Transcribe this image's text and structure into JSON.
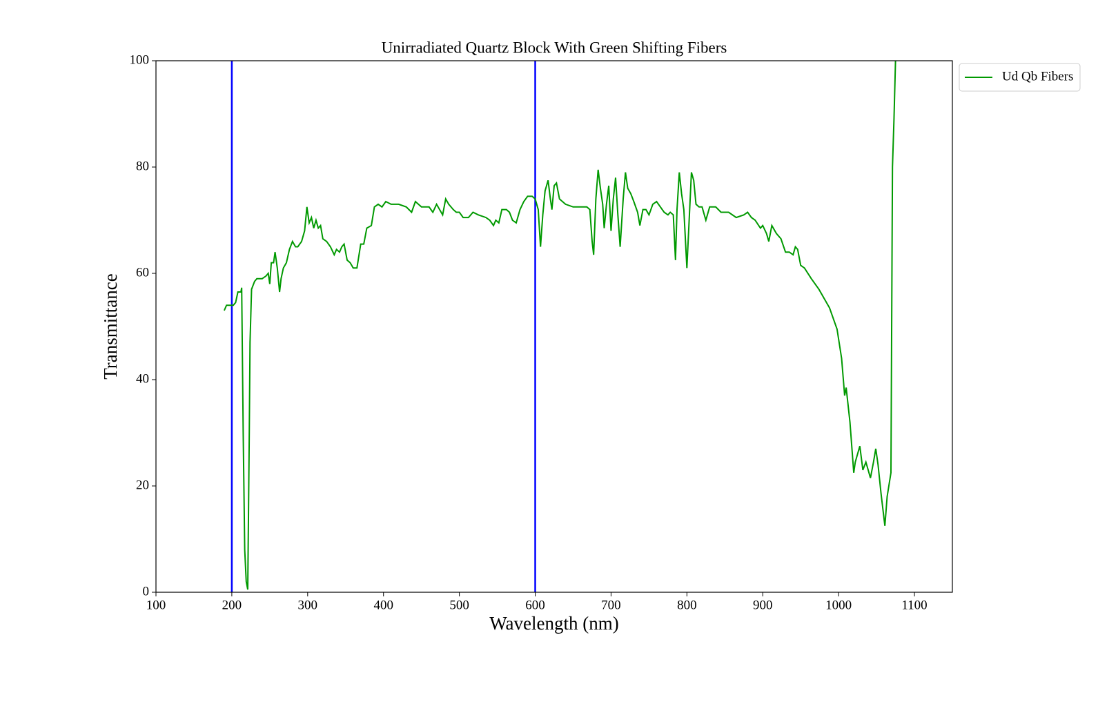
{
  "chart_data": {
    "type": "line",
    "title": "Unirradiated Quartz Block With Green Shifting Fibers",
    "x_label": "Wavelength (nm)",
    "y_label": "Transmittance",
    "xlim": [
      100,
      1150
    ],
    "ylim": [
      0,
      100
    ],
    "xticks": [
      100,
      200,
      300,
      400,
      500,
      600,
      700,
      800,
      900,
      1000,
      1100
    ],
    "yticks": [
      0,
      20,
      40,
      60,
      80,
      100
    ],
    "legend": "outside-upper-right",
    "vlines": {
      "x": [
        200,
        600
      ],
      "color": "#0000ff"
    },
    "series": [
      {
        "name": "Ud Qb Fibers",
        "color": "#009900",
        "x": [
          190,
          193,
          197,
          202,
          205,
          208,
          212,
          213,
          215,
          217,
          219,
          221,
          223,
          224,
          226,
          230,
          233,
          240,
          245,
          248,
          250,
          252,
          255,
          257,
          260,
          263,
          265,
          268,
          272,
          276,
          280,
          284,
          287,
          292,
          296,
          299,
          302,
          305,
          308,
          311,
          314,
          317,
          320,
          325,
          330,
          335,
          338,
          342,
          345,
          348,
          352,
          356,
          360,
          365,
          370,
          374,
          378,
          384,
          388,
          393,
          398,
          403,
          410,
          420,
          430,
          437,
          442,
          450,
          460,
          465,
          470,
          478,
          482,
          486,
          492,
          496,
          500,
          505,
          512,
          518,
          525,
          535,
          540,
          545,
          548,
          552,
          556,
          562,
          566,
          570,
          575,
          580,
          585,
          590,
          596,
          600,
          604,
          607,
          610,
          613,
          617,
          620,
          622,
          625,
          628,
          632,
          640,
          650,
          660,
          668,
          672,
          675,
          677,
          680,
          683,
          686,
          689,
          691,
          694,
          697,
          700,
          703,
          706,
          709,
          712,
          716,
          719,
          722,
          726,
          730,
          735,
          738,
          742,
          746,
          750,
          755,
          760,
          765,
          770,
          775,
          778,
          782,
          785,
          787,
          790,
          793,
          796,
          800,
          803,
          806,
          809,
          812,
          816,
          820,
          825,
          830,
          838,
          845,
          855,
          865,
          875,
          880,
          885,
          890,
          897,
          900,
          905,
          908,
          912,
          918,
          924,
          930,
          935,
          940,
          943,
          946,
          950,
          955,
          964,
          974,
          988,
          998,
          1004,
          1008,
          1010,
          1015,
          1020,
          1022,
          1028,
          1032,
          1036,
          1042,
          1046,
          1049,
          1052,
          1056,
          1061,
          1064,
          1069,
          1071,
          1073,
          1075
        ],
        "values": [
          53,
          54,
          54,
          54,
          54.5,
          56.5,
          56.5,
          57.3,
          30,
          8,
          2,
          0.5,
          30,
          47,
          57,
          58.5,
          59,
          59,
          59.5,
          60,
          58,
          62,
          62,
          64,
          61,
          56.5,
          59,
          61,
          62,
          64.5,
          66,
          65,
          65,
          66,
          68,
          72.5,
          69.5,
          70.5,
          68.5,
          70,
          68.5,
          69,
          66.5,
          66,
          65,
          63.5,
          64.5,
          64,
          65,
          65.5,
          62.5,
          62,
          61,
          61,
          65.5,
          65.5,
          68.5,
          69,
          72.5,
          73,
          72.5,
          73.5,
          73,
          73,
          72.5,
          71.5,
          73.5,
          72.5,
          72.5,
          71.5,
          73,
          71,
          74,
          73,
          72,
          71.5,
          71.5,
          70.5,
          70.5,
          71.5,
          71,
          70.5,
          70,
          69,
          70,
          69.5,
          72,
          72,
          71.5,
          70,
          69.5,
          72,
          73.5,
          74.5,
          74.5,
          74,
          72,
          65,
          71,
          75.5,
          77.5,
          74,
          72,
          76.5,
          77,
          74,
          73,
          72.5,
          72.5,
          72.5,
          72,
          66,
          63.5,
          74,
          79.5,
          76,
          73,
          68.5,
          73,
          76.5,
          68,
          74,
          78,
          71,
          65,
          74,
          79,
          76,
          75,
          73.5,
          71.5,
          69,
          72,
          72,
          71,
          73,
          73.5,
          72.5,
          71.5,
          71,
          71.5,
          71,
          62.5,
          72,
          79,
          75,
          72,
          61,
          70,
          79,
          77.5,
          73,
          72.5,
          72.5,
          70,
          72.5,
          72.5,
          71.5,
          71.5,
          70.5,
          71,
          71.5,
          70.5,
          70,
          68.5,
          69,
          67.5,
          66,
          69,
          67.5,
          66.5,
          64,
          64,
          63.5,
          65,
          64.5,
          61.5,
          61,
          59,
          57,
          53.5,
          49.5,
          44,
          37,
          38.5,
          32,
          22.5,
          24.5,
          27.5,
          23,
          24.5,
          21.5,
          24.5,
          27,
          24,
          18.5,
          12.5,
          18,
          22.5,
          80,
          89,
          100
        ]
      }
    ]
  }
}
